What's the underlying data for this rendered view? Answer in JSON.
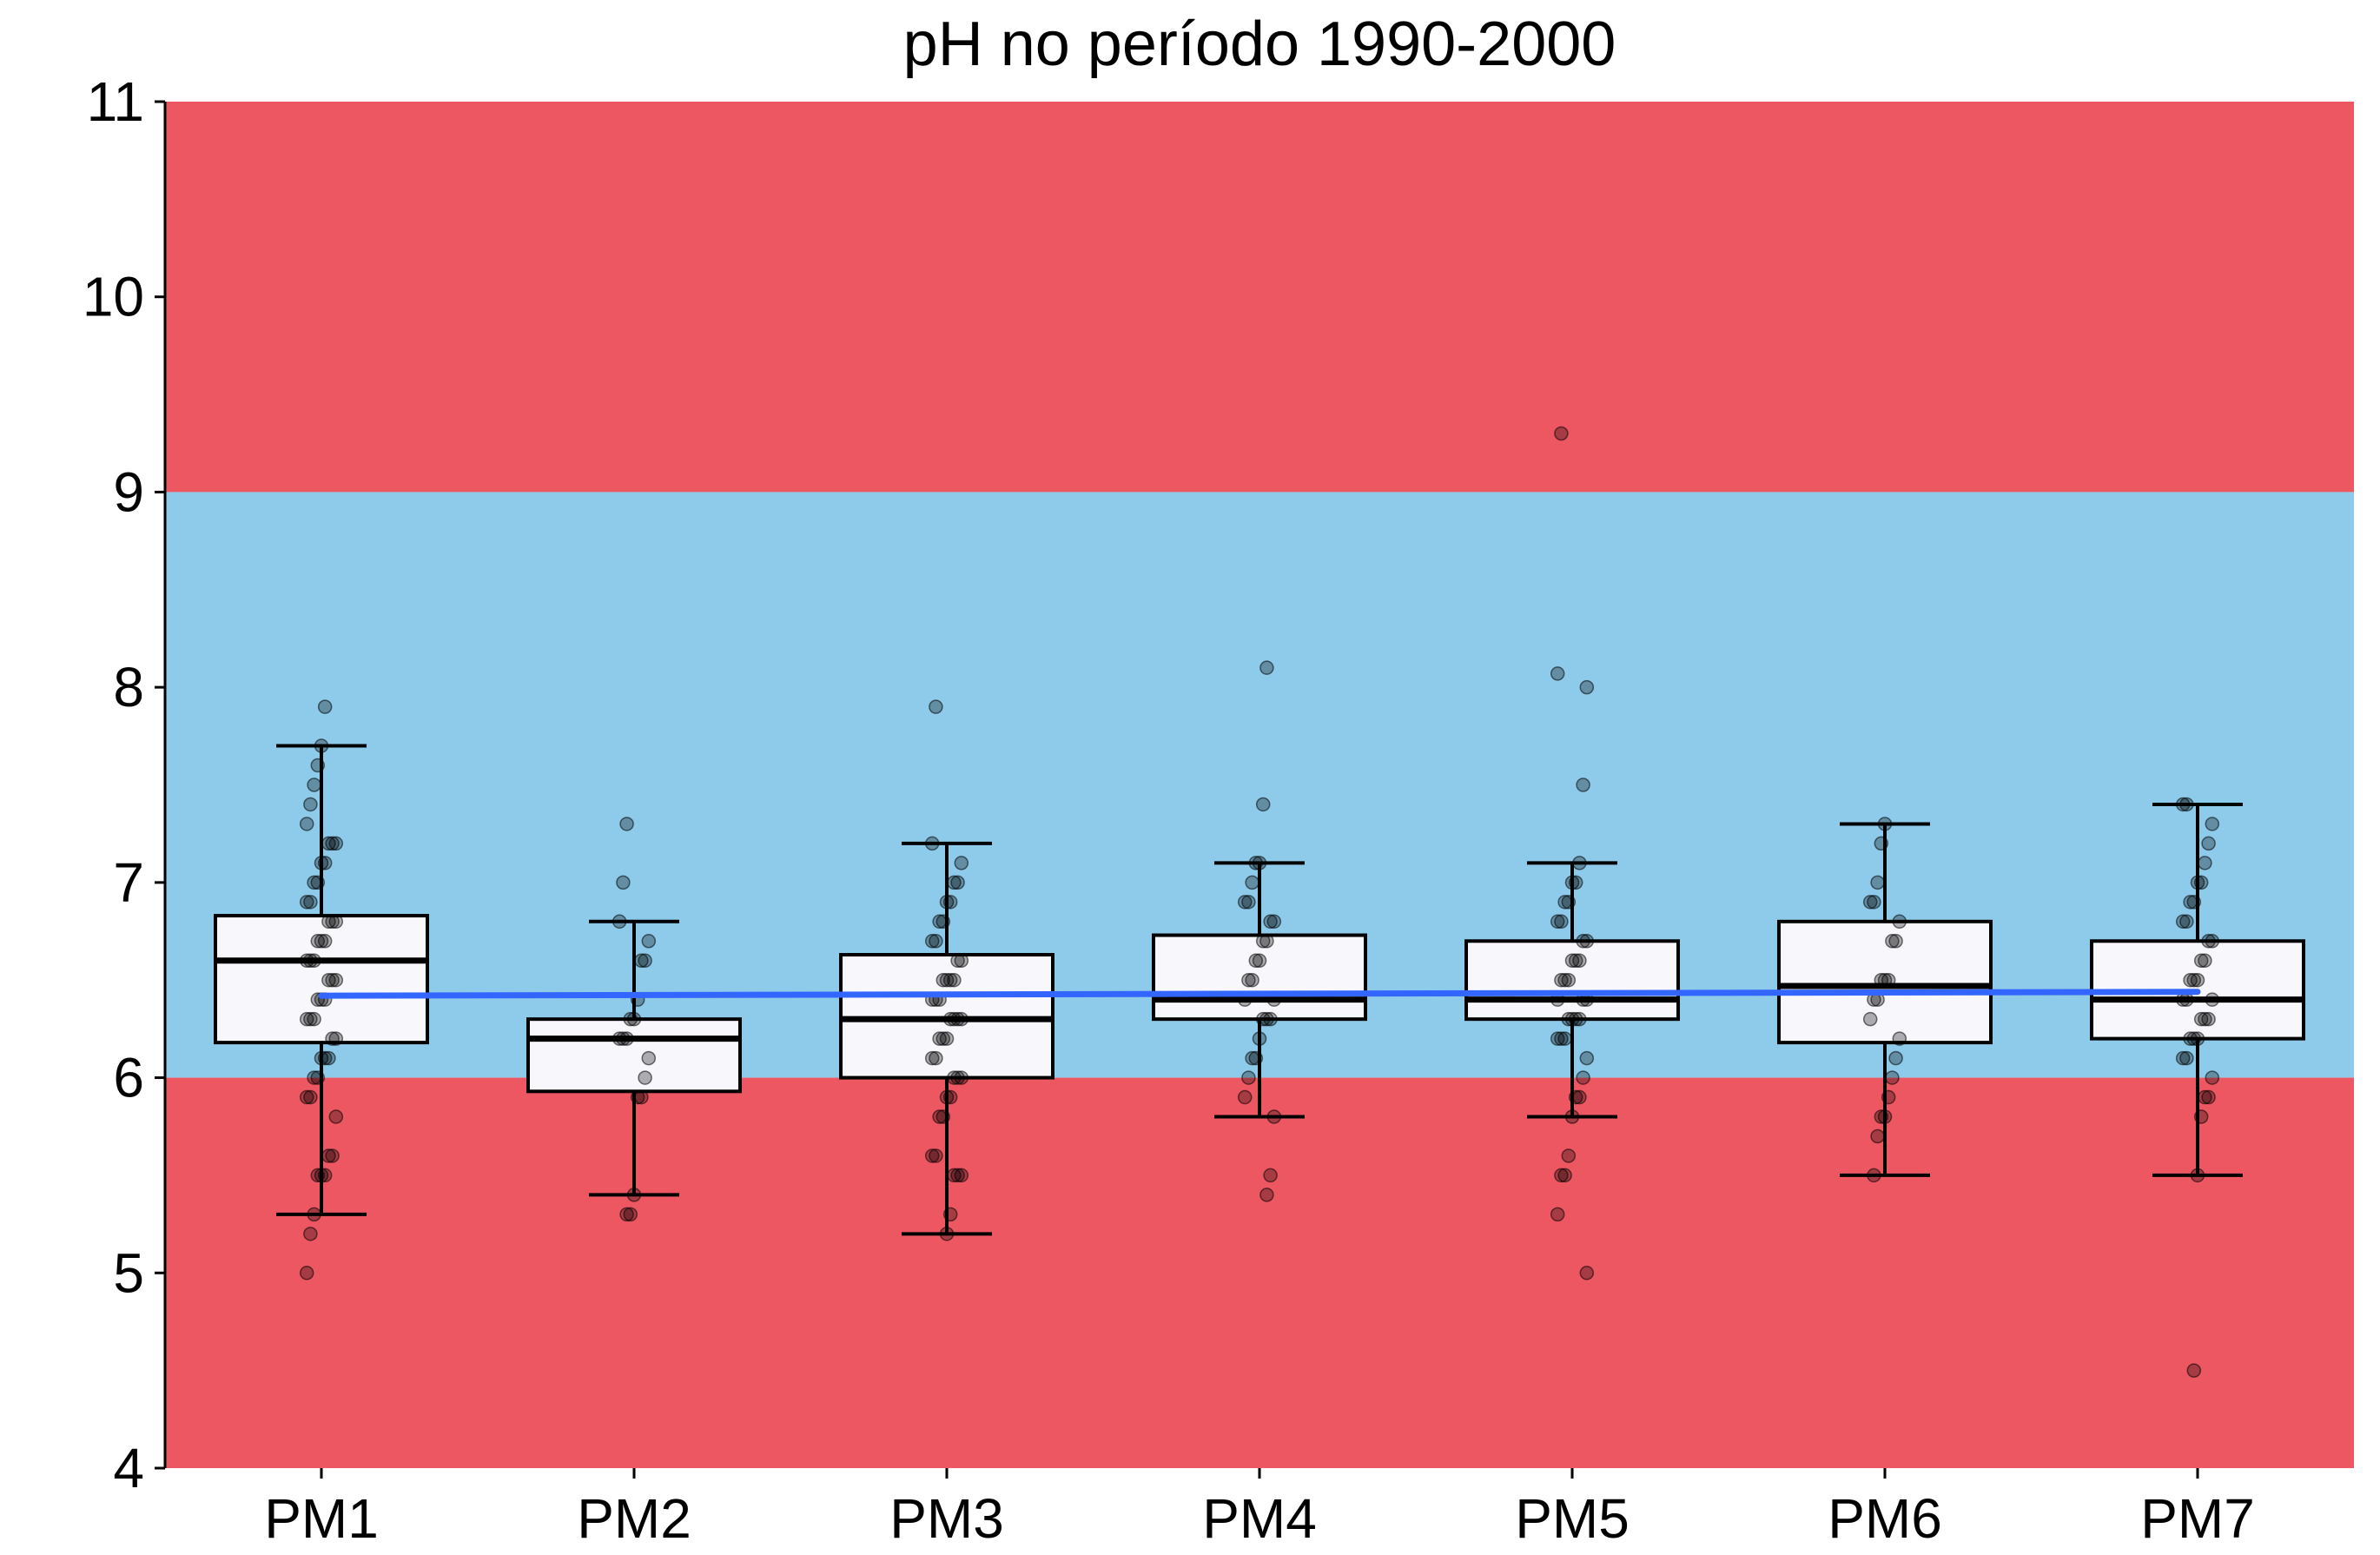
{
  "chart_data": {
    "type": "box",
    "title": "pH no período 1990-2000",
    "xlabel": "",
    "ylabel": "",
    "ylim": [
      4,
      11
    ],
    "yticks": [
      "4",
      "5",
      "6",
      "7",
      "8",
      "9",
      "10",
      "11"
    ],
    "categories": [
      "PM1",
      "PM2",
      "PM3",
      "PM4",
      "PM5",
      "PM6",
      "PM7"
    ],
    "bands": [
      {
        "from": 9,
        "to": 11,
        "color": "#ec5761"
      },
      {
        "from": 6,
        "to": 9,
        "color": "#8ecbea"
      },
      {
        "from": 4,
        "to": 6,
        "color": "#ec5761"
      }
    ],
    "boxes": [
      {
        "category": "PM1",
        "whisker_low": 5.3,
        "q1": 6.18,
        "median": 6.6,
        "q3": 6.83,
        "whisker_high": 7.7
      },
      {
        "category": "PM2",
        "whisker_low": 5.4,
        "q1": 5.93,
        "median": 6.2,
        "q3": 6.3,
        "whisker_high": 6.8
      },
      {
        "category": "PM3",
        "whisker_low": 5.2,
        "q1": 6.0,
        "median": 6.3,
        "q3": 6.63,
        "whisker_high": 7.2
      },
      {
        "category": "PM4",
        "whisker_low": 5.8,
        "q1": 6.3,
        "median": 6.4,
        "q3": 6.73,
        "whisker_high": 7.1
      },
      {
        "category": "PM5",
        "whisker_low": 5.8,
        "q1": 6.3,
        "median": 6.4,
        "q3": 6.7,
        "whisker_high": 7.1
      },
      {
        "category": "PM6",
        "whisker_low": 5.5,
        "q1": 6.18,
        "median": 6.47,
        "q3": 6.8,
        "whisker_high": 7.3
      },
      {
        "category": "PM7",
        "whisker_low": 5.5,
        "q1": 6.2,
        "median": 6.4,
        "q3": 6.7,
        "whisker_high": 7.4
      }
    ],
    "points": {
      "PM1": [
        5.0,
        5.2,
        5.3,
        5.5,
        5.5,
        5.5,
        5.6,
        5.6,
        5.8,
        5.9,
        5.9,
        6.0,
        6.0,
        6.1,
        6.1,
        6.1,
        6.2,
        6.2,
        6.3,
        6.3,
        6.3,
        6.4,
        6.4,
        6.4,
        6.5,
        6.5,
        6.5,
        6.6,
        6.6,
        6.6,
        6.7,
        6.7,
        6.7,
        6.8,
        6.8,
        6.8,
        6.9,
        6.9,
        7.0,
        7.0,
        7.1,
        7.1,
        7.2,
        7.2,
        7.2,
        7.3,
        7.4,
        7.5,
        7.6,
        7.7,
        7.9
      ],
      "PM2": [
        5.3,
        5.3,
        5.4,
        5.9,
        5.9,
        6.0,
        6.1,
        6.2,
        6.2,
        6.2,
        6.3,
        6.3,
        6.4,
        6.6,
        6.6,
        6.7,
        6.8,
        7.0,
        7.3
      ],
      "PM3": [
        5.2,
        5.3,
        5.5,
        5.5,
        5.5,
        5.6,
        5.6,
        5.8,
        5.8,
        5.9,
        5.9,
        6.0,
        6.0,
        6.0,
        6.1,
        6.1,
        6.2,
        6.2,
        6.2,
        6.3,
        6.3,
        6.3,
        6.3,
        6.4,
        6.4,
        6.4,
        6.5,
        6.5,
        6.5,
        6.5,
        6.6,
        6.6,
        6.7,
        6.7,
        6.8,
        6.8,
        6.9,
        6.9,
        7.0,
        7.0,
        7.1,
        7.2,
        7.9
      ],
      "PM4": [
        5.4,
        5.5,
        5.8,
        5.9,
        6.0,
        6.1,
        6.1,
        6.2,
        6.3,
        6.3,
        6.3,
        6.4,
        6.4,
        6.5,
        6.5,
        6.6,
        6.6,
        6.7,
        6.7,
        6.8,
        6.8,
        6.9,
        6.9,
        7.0,
        7.1,
        7.1,
        7.4,
        8.1
      ],
      "PM5": [
        5.0,
        5.3,
        5.5,
        5.5,
        5.6,
        5.8,
        5.9,
        5.9,
        6.0,
        6.1,
        6.2,
        6.2,
        6.2,
        6.3,
        6.3,
        6.3,
        6.3,
        6.4,
        6.4,
        6.4,
        6.5,
        6.5,
        6.5,
        6.6,
        6.6,
        6.6,
        6.7,
        6.7,
        6.8,
        6.8,
        6.9,
        6.9,
        7.0,
        7.0,
        7.1,
        7.5,
        8.0,
        8.07,
        9.3
      ],
      "PM6": [
        5.5,
        5.7,
        5.8,
        5.8,
        5.9,
        6.0,
        6.1,
        6.2,
        6.3,
        6.4,
        6.4,
        6.5,
        6.5,
        6.5,
        6.7,
        6.7,
        6.8,
        6.9,
        6.9,
        7.0,
        7.2,
        7.3
      ],
      "PM7": [
        4.5,
        5.5,
        5.8,
        5.9,
        5.9,
        6.0,
        6.1,
        6.1,
        6.2,
        6.2,
        6.2,
        6.3,
        6.3,
        6.3,
        6.4,
        6.4,
        6.4,
        6.5,
        6.5,
        6.5,
        6.6,
        6.6,
        6.7,
        6.7,
        6.8,
        6.8,
        6.9,
        6.9,
        7.0,
        7.0,
        7.1,
        7.2,
        7.3,
        7.4,
        7.4
      ]
    },
    "trend_line": {
      "color": "#3366ff",
      "start": 6.42,
      "end": 6.44
    },
    "colors": {
      "box_fill": "#f7f7fc",
      "box_stroke": "#000000",
      "point": "#000000"
    },
    "grid": false,
    "legend": "none"
  }
}
